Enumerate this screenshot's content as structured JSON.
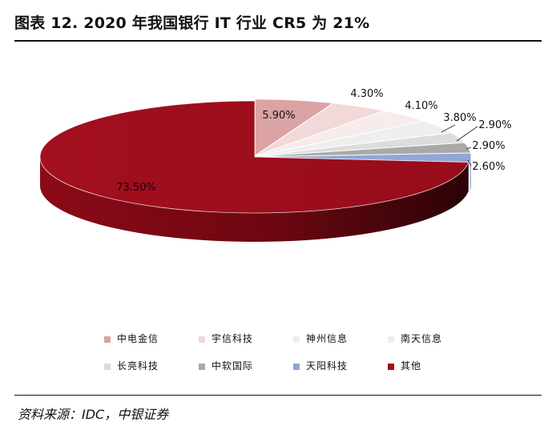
{
  "title": "图表 12. 2020 年我国银行 IT 行业 CR5 为 21%",
  "source": "资料来源：IDC，中银证券",
  "chart_data": {
    "type": "pie",
    "style": "3d-exploded",
    "categories": [
      "中电金信",
      "宇信科技",
      "神州信息",
      "南天信息",
      "长亮科技",
      "中软国际",
      "天阳科技",
      "其他"
    ],
    "values": [
      5.9,
      4.3,
      4.1,
      3.8,
      2.9,
      2.9,
      2.6,
      73.5
    ],
    "labels": [
      "5.90%",
      "4.30%",
      "4.10%",
      "3.80%",
      "2.90%",
      "2.90%",
      "2.60%",
      "73.50%"
    ],
    "colors": [
      "#dca3a4",
      "#f2d8d8",
      "#f6ecec",
      "#eeeeee",
      "#dcdcdc",
      "#a9a9a9",
      "#8fa6d6",
      "#9f0d1d"
    ],
    "legend_position": "bottom"
  }
}
